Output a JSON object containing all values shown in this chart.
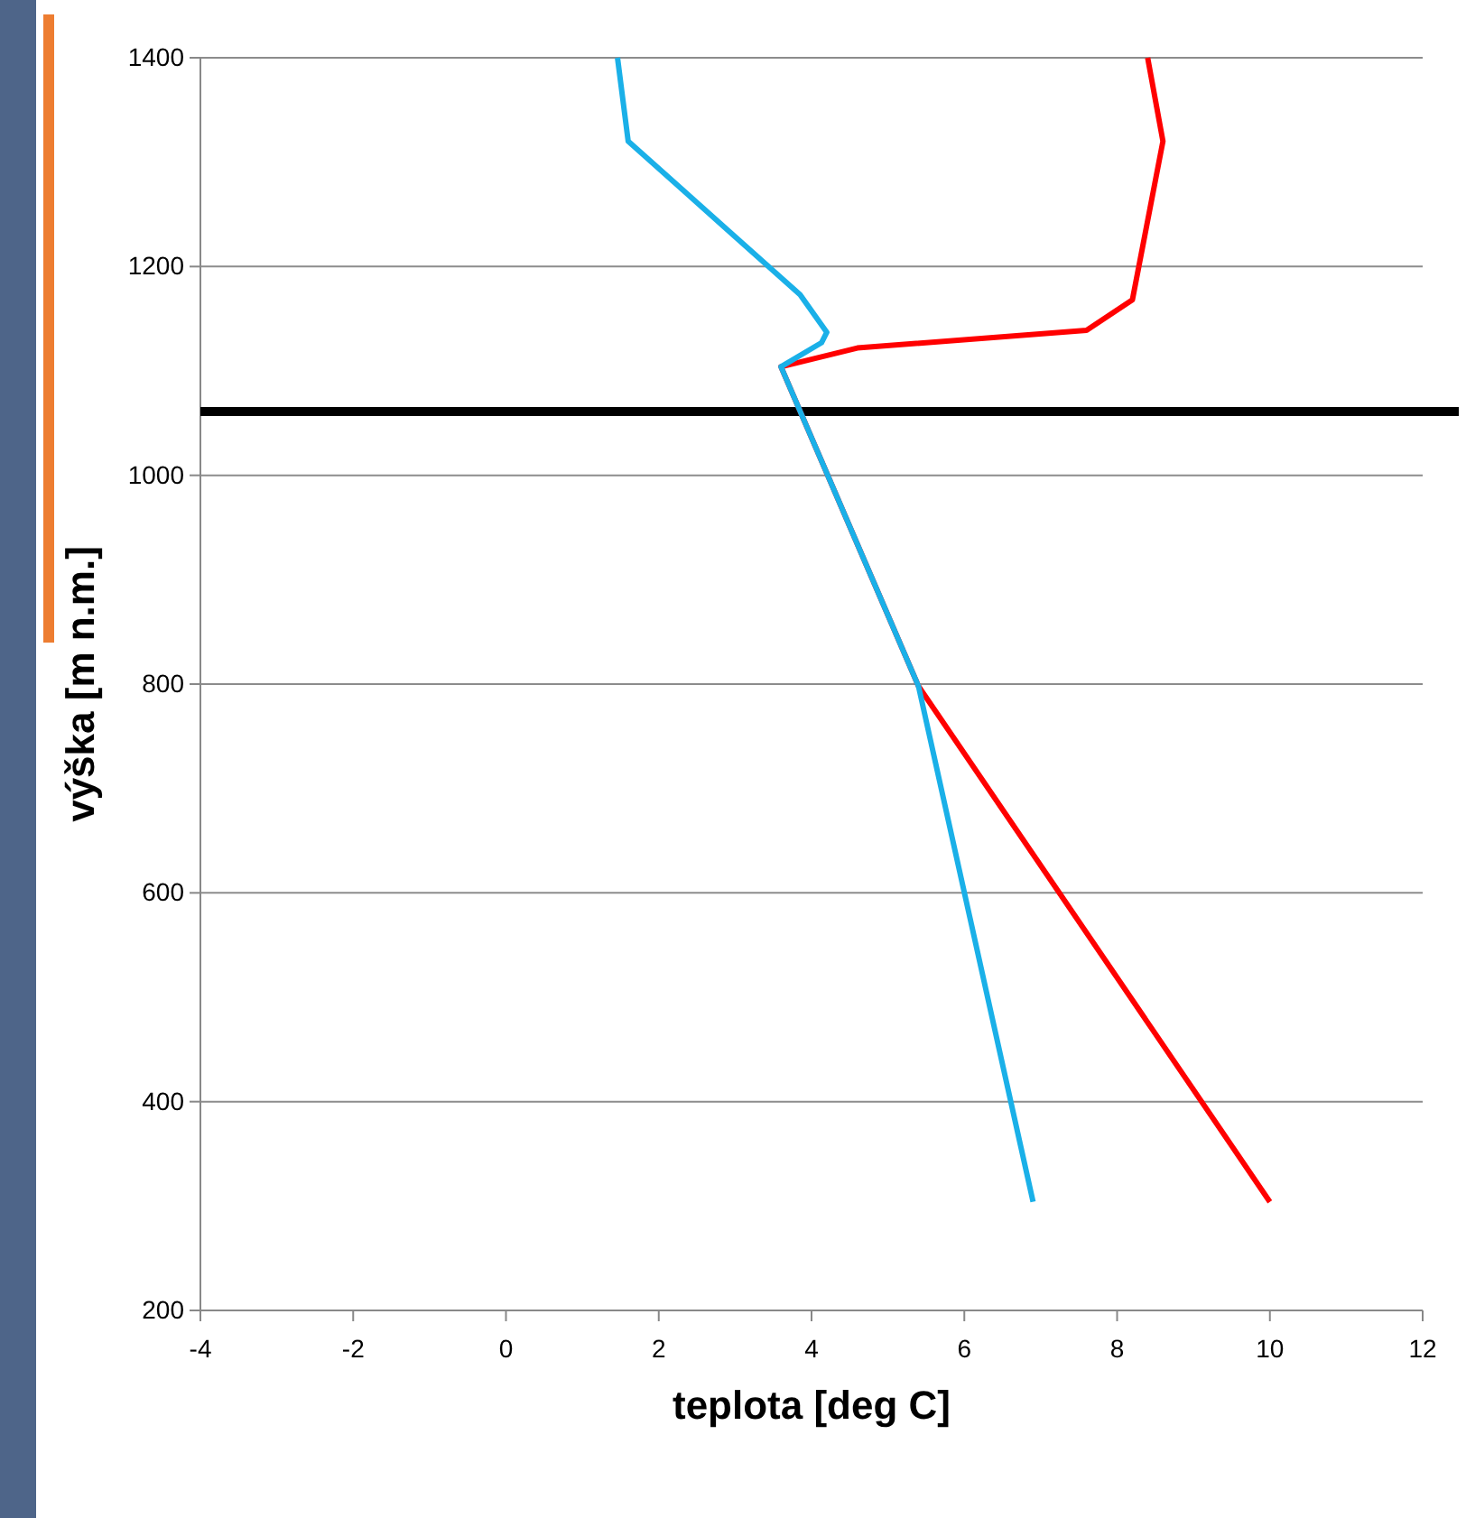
{
  "chart_data": {
    "type": "line",
    "xlabel": "teplota [deg C]",
    "ylabel": "výška [m n.m.]",
    "xlim": [
      -4,
      12
    ],
    "xticks": [
      -4,
      -2,
      0,
      2,
      4,
      6,
      8,
      10,
      12
    ],
    "ylim": [
      200,
      1400
    ],
    "yticks": [
      200,
      400,
      600,
      800,
      1000,
      1200,
      1400
    ],
    "grid": "y",
    "marker": "none",
    "line_style": "solid",
    "series": [
      {
        "color": "#ff0000",
        "x": [
          10,
          5.4,
          3.6,
          4.6,
          7.6,
          8.2,
          8.6,
          8.4
        ],
        "values": [
          304,
          798,
          1104,
          1122,
          1139,
          1168,
          1320,
          1400
        ]
      },
      {
        "color": "#1ab0e8",
        "x": [
          6.9,
          5.4,
          3.6,
          4.13,
          4.2,
          3.85,
          1.6,
          1.46
        ],
        "values": [
          304,
          798,
          1104,
          1127,
          1137,
          1173,
          1320,
          1400
        ]
      }
    ],
    "ref_lines": [
      {
        "axis": "y",
        "value": 1061,
        "color": "#000000"
      }
    ]
  }
}
